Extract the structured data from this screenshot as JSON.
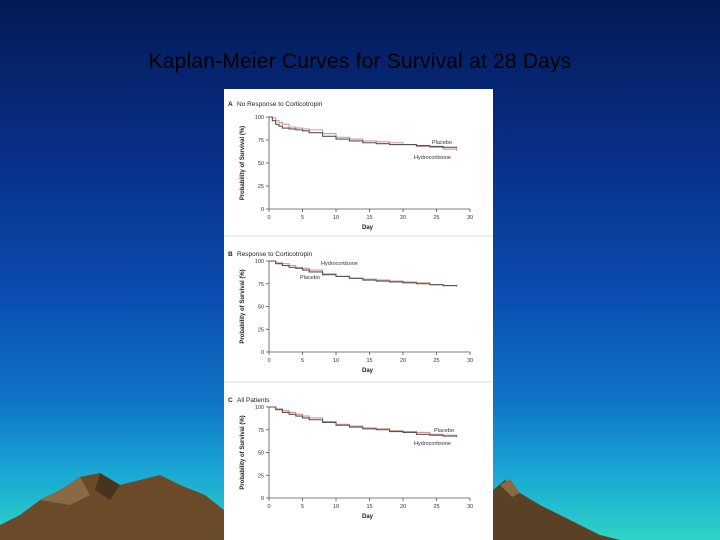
{
  "slide": {
    "title": "Kaplan-Meier Curves for Survival at 28 Days"
  },
  "colors": {
    "placebo": "#d9968f",
    "hydrocortisone": "#555555",
    "background_top": "#041a55",
    "background_bottom": "#2fd3c6"
  },
  "chart_data": [
    {
      "type": "line",
      "panel": "A",
      "title": "No Response to Corticotropin",
      "xlabel": "Day",
      "ylabel": "Probability of Survival (%)",
      "xlim": [
        0,
        30
      ],
      "ylim": [
        0,
        100
      ],
      "xticks": [
        0,
        5,
        10,
        15,
        20,
        25,
        30
      ],
      "yticks": [
        0,
        25,
        50,
        75,
        100
      ],
      "series": [
        {
          "name": "Placebo",
          "color": "#d9968f",
          "x": [
            0,
            0.5,
            1,
            1.5,
            2,
            3,
            4,
            5,
            6,
            8,
            10,
            12,
            14,
            16,
            18,
            20,
            22,
            24,
            26,
            28
          ],
          "y": [
            100,
            99,
            96,
            94,
            92,
            89,
            88,
            87,
            86,
            82,
            78,
            76,
            74,
            73,
            72,
            70,
            68,
            67,
            65,
            63
          ]
        },
        {
          "name": "Hydrocortisone",
          "color": "#555555",
          "x": [
            0,
            0.5,
            1,
            1.5,
            2,
            3,
            4,
            5,
            6,
            8,
            10,
            12,
            14,
            16,
            18,
            20,
            22,
            24,
            26,
            28
          ],
          "y": [
            100,
            96,
            92,
            90,
            88,
            87,
            86,
            85,
            83,
            79,
            76,
            74,
            72,
            71,
            70,
            70,
            69,
            68,
            67,
            66
          ]
        }
      ]
    },
    {
      "type": "line",
      "panel": "B",
      "title": "Response to Corticotropin",
      "xlabel": "Day",
      "ylabel": "Probability of Survival (%)",
      "xlim": [
        0,
        30
      ],
      "ylim": [
        0,
        100
      ],
      "xticks": [
        0,
        5,
        10,
        15,
        20,
        25,
        30
      ],
      "yticks": [
        0,
        25,
        50,
        75,
        100
      ],
      "series": [
        {
          "name": "Hydrocortisone",
          "color": "#d9968f",
          "x": [
            0,
            1,
            2,
            3,
            4,
            5,
            6,
            8,
            10,
            12,
            14,
            16,
            18,
            20,
            22,
            24,
            26,
            28
          ],
          "y": [
            100,
            98,
            97,
            95,
            93,
            92,
            90,
            86,
            83,
            81,
            80,
            79,
            78,
            77,
            76,
            74,
            73,
            72
          ]
        },
        {
          "name": "Placebo",
          "color": "#555555",
          "x": [
            0,
            1,
            2,
            3,
            4,
            5,
            6,
            8,
            10,
            12,
            14,
            16,
            18,
            20,
            22,
            24,
            26,
            28
          ],
          "y": [
            100,
            97,
            95,
            93,
            92,
            90,
            88,
            85,
            83,
            81,
            79,
            78,
            77,
            76,
            75,
            74,
            73,
            72
          ]
        }
      ]
    },
    {
      "type": "line",
      "panel": "C",
      "title": "All Patients",
      "xlabel": "Day",
      "ylabel": "Probability of Survival (%)",
      "xlim": [
        0,
        30
      ],
      "ylim": [
        0,
        100
      ],
      "xticks": [
        0,
        5,
        10,
        15,
        20,
        25,
        30
      ],
      "yticks": [
        0,
        25,
        50,
        75,
        100
      ],
      "series": [
        {
          "name": "Placebo",
          "color": "#d9968f",
          "x": [
            0,
            1,
            2,
            3,
            4,
            5,
            6,
            8,
            10,
            12,
            14,
            16,
            18,
            20,
            22,
            24,
            26,
            28
          ],
          "y": [
            100,
            98,
            96,
            94,
            92,
            90,
            88,
            84,
            81,
            79,
            77,
            76,
            74,
            73,
            72,
            70,
            69,
            68
          ]
        },
        {
          "name": "Hydrocortisone",
          "color": "#555555",
          "x": [
            0,
            1,
            2,
            3,
            4,
            5,
            6,
            8,
            10,
            12,
            14,
            16,
            18,
            20,
            22,
            24,
            26,
            28
          ],
          "y": [
            100,
            97,
            94,
            92,
            90,
            88,
            86,
            83,
            80,
            78,
            76,
            75,
            73,
            72,
            70,
            69,
            68,
            67
          ]
        }
      ]
    }
  ]
}
